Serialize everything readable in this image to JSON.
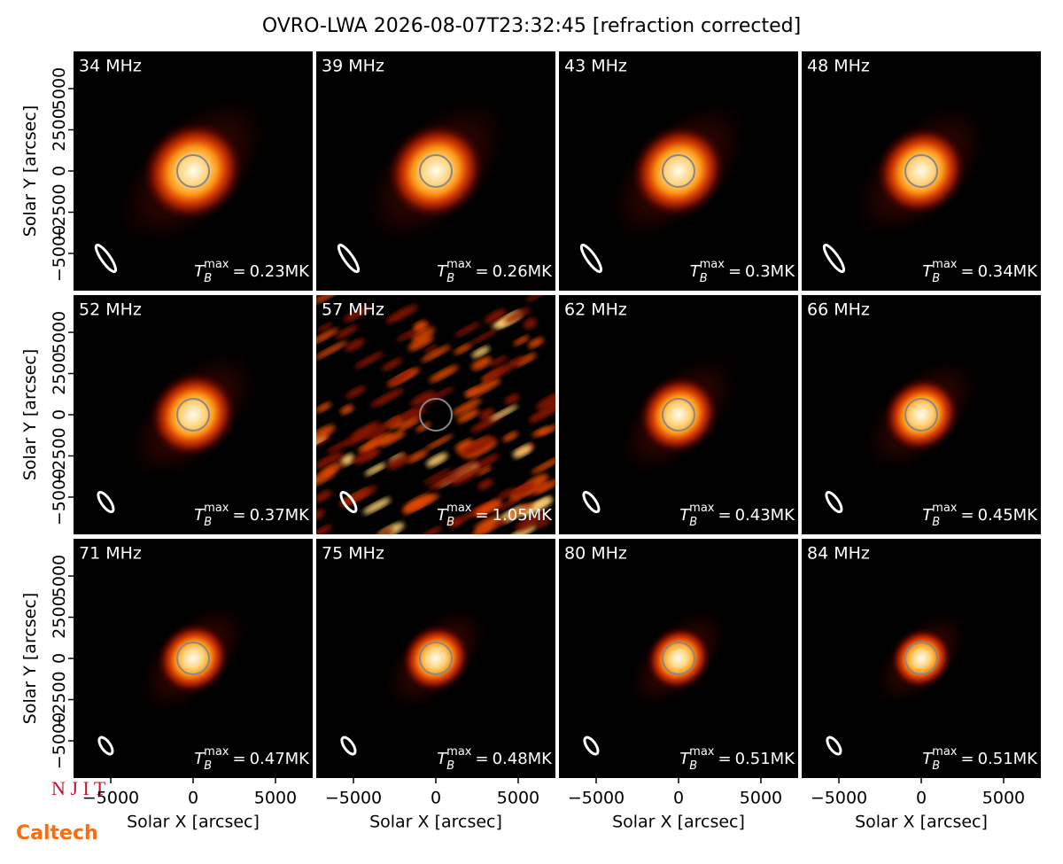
{
  "figure": {
    "title": "OVRO-LWA 2026-08-07T23:32:45 [refraction corrected]",
    "xlabel": "Solar X [arcsec]",
    "ylabel": "Solar Y [arcsec]",
    "xlim": [
      -7260,
      7260
    ],
    "ylim": [
      -7260,
      7260
    ],
    "xticks": [
      {
        "value": -5000,
        "label": "−5000"
      },
      0,
      5000
    ],
    "yticks": [
      {
        "value": -5000,
        "label": "−5000"
      },
      {
        "value": -2500,
        "label": "−2500"
      },
      0,
      2500,
      5000
    ],
    "tmax_symbol": "T",
    "tmax_sub": "B",
    "tmax_sup": "max",
    "tmax_eq": "=",
    "panels": [
      {
        "freq": "34 MHz",
        "tmax": "0.23MK"
      },
      {
        "freq": "39 MHz",
        "tmax": "0.26MK"
      },
      {
        "freq": "43 MHz",
        "tmax": "0.3MK"
      },
      {
        "freq": "48 MHz",
        "tmax": "0.34MK"
      },
      {
        "freq": "52 MHz",
        "tmax": "0.37MK"
      },
      {
        "freq": "57 MHz",
        "tmax": "1.05MK"
      },
      {
        "freq": "62 MHz",
        "tmax": "0.43MK"
      },
      {
        "freq": "66 MHz",
        "tmax": "0.45MK"
      },
      {
        "freq": "71 MHz",
        "tmax": "0.47MK"
      },
      {
        "freq": "75 MHz",
        "tmax": "0.48MK"
      },
      {
        "freq": "80 MHz",
        "tmax": "0.51MK"
      },
      {
        "freq": "84 MHz",
        "tmax": "0.51MK"
      }
    ],
    "logos": {
      "njit": "N J I T",
      "caltech": "Caltech"
    }
  }
}
